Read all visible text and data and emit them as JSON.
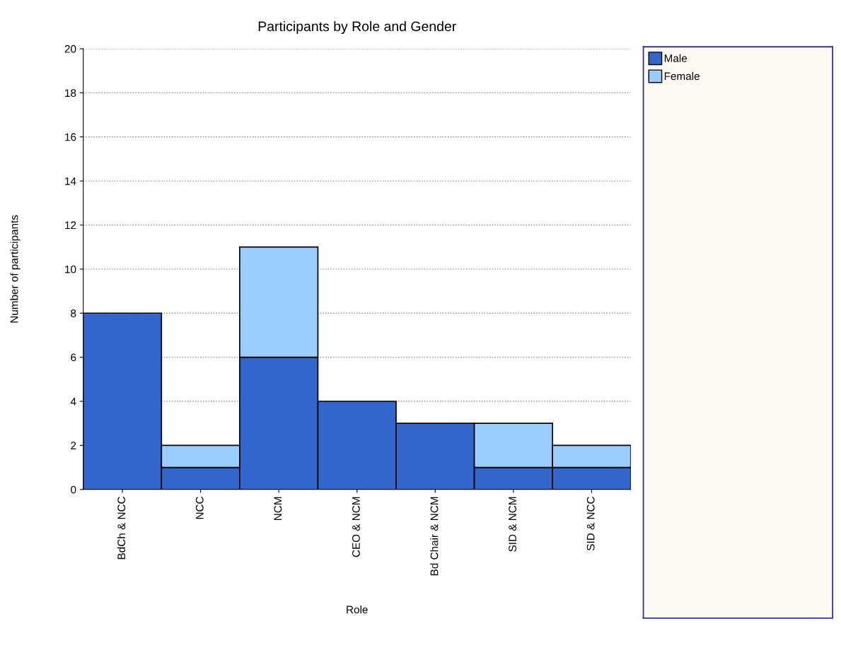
{
  "chart_data": {
    "type": "bar",
    "title": "Participants by Role and Gender",
    "xlabel": "Role",
    "ylabel": "Number of participants",
    "categories": [
      "BdCh & NCC",
      "NCC",
      "NCM",
      "CEO & NCM",
      "Bd Chair & NCM",
      "SID & NCM",
      "SID & NCC"
    ],
    "series": [
      {
        "name": "Male",
        "color": "#3366cc",
        "values": [
          8,
          1,
          6,
          4,
          3,
          1,
          1
        ]
      },
      {
        "name": "Female",
        "color": "#99ccff",
        "values": [
          null,
          1,
          5,
          null,
          null,
          2,
          1
        ]
      }
    ],
    "stacked": true,
    "ylim": [
      0,
      20
    ],
    "yticks": [
      0,
      2,
      4,
      6,
      8,
      10,
      12,
      14,
      16,
      18,
      20
    ],
    "grid": "y",
    "legend": "right"
  }
}
